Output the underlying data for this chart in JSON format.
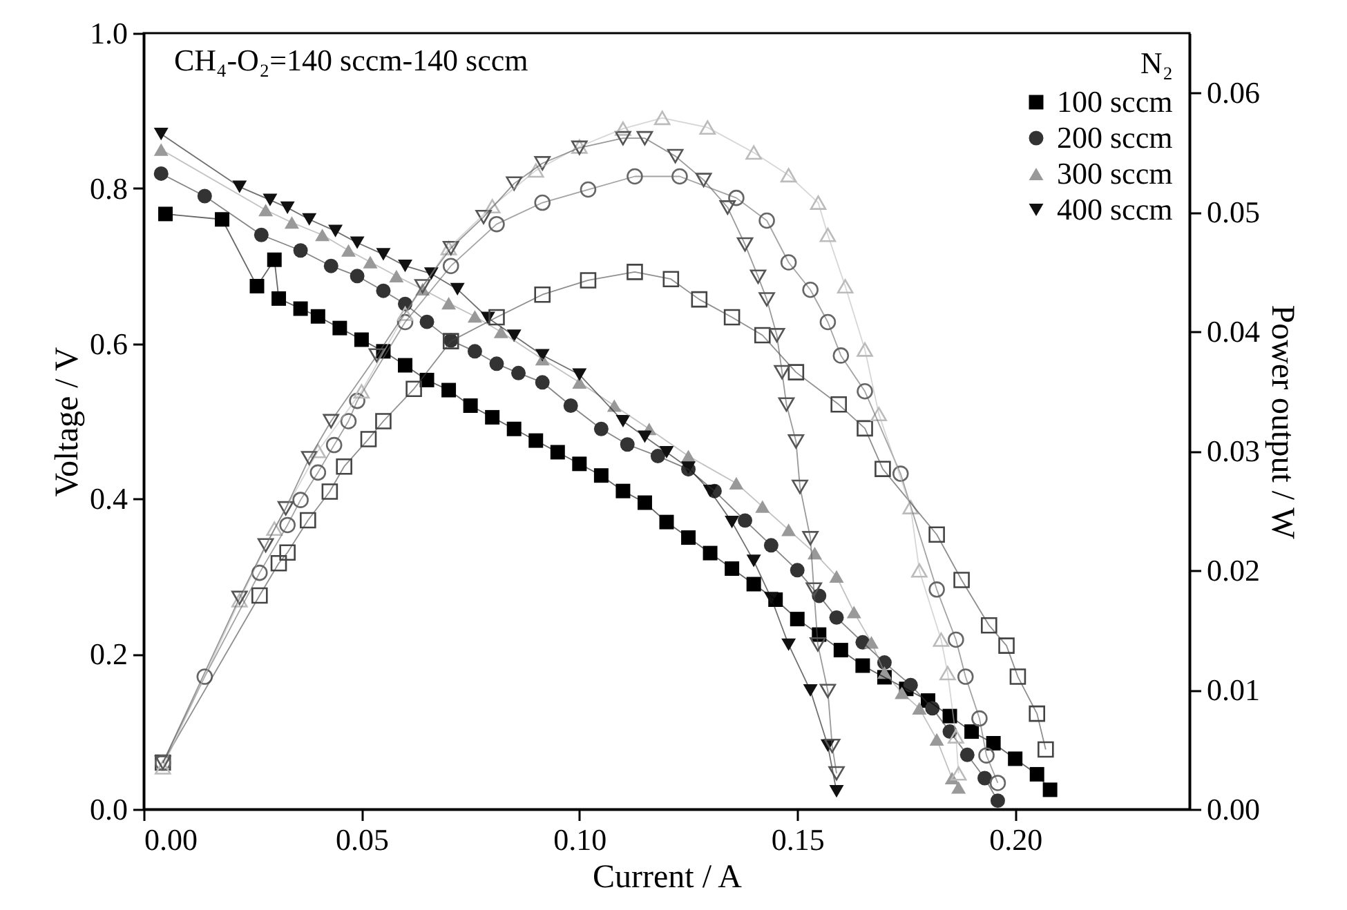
{
  "chart_data": {
    "type": "line",
    "xlabel": "Current / A",
    "ylabel": "Voltage / V",
    "y2label": "Power output / W",
    "legend_title": "N₂",
    "annotations": [
      "CH₄-O₂=140 sccm-140 sccm"
    ],
    "xlim": [
      0,
      0.24
    ],
    "xticks": [
      {
        "value": 0,
        "label": "0.00"
      },
      0.05,
      {
        "value": 0.1,
        "label": "0.10"
      },
      0.15,
      {
        "value": 0.2,
        "label": "0.20"
      }
    ],
    "ylim": [
      0,
      1
    ],
    "yticks": [
      {
        "value": 0,
        "label": "0.0"
      },
      0.2,
      0.4,
      0.6,
      0.8,
      {
        "value": 1,
        "label": "1.0"
      }
    ],
    "y2lim": [
      0,
      0.065
    ],
    "y2ticks": [
      {
        "value": 0,
        "label": "0.00"
      },
      0.01,
      0.02,
      0.03,
      0.04,
      0.05,
      0.06
    ],
    "legend": "top right",
    "series": [
      {
        "name": "100 sccm",
        "type": "line",
        "marker": "square",
        "color": "#000000",
        "x": [
          0.005,
          0.018,
          0.026,
          0.03,
          0.031,
          0.036,
          0.04,
          0.045,
          0.05,
          0.055,
          0.06,
          0.065,
          0.07,
          0.075,
          0.08,
          0.085,
          0.09,
          0.095,
          0.1,
          0.105,
          0.11,
          0.115,
          0.12,
          0.125,
          0.13,
          0.135,
          0.14,
          0.145,
          0.15,
          0.155,
          0.16,
          0.165,
          0.17,
          0.175,
          0.18,
          0.185,
          0.19,
          0.195,
          0.2,
          0.205,
          0.208
        ],
        "values": [
          0.767,
          0.76,
          0.674,
          0.708,
          0.658,
          0.645,
          0.635,
          0.62,
          0.605,
          0.59,
          0.572,
          0.553,
          0.54,
          0.52,
          0.505,
          0.49,
          0.475,
          0.46,
          0.445,
          0.43,
          0.41,
          0.395,
          0.37,
          0.35,
          0.33,
          0.31,
          0.29,
          0.27,
          0.245,
          0.225,
          0.205,
          0.185,
          0.17,
          0.155,
          0.14,
          0.12,
          0.1,
          0.085,
          0.065,
          0.045,
          0.025
        ]
      },
      {
        "name": "200 sccm",
        "type": "line",
        "marker": "circle",
        "color": "#333333",
        "x": [
          0.004,
          0.014,
          0.027,
          0.036,
          0.043,
          0.049,
          0.055,
          0.06,
          0.065,
          0.0705,
          0.076,
          0.081,
          0.086,
          0.0915,
          0.098,
          0.105,
          0.111,
          0.118,
          0.125,
          0.131,
          0.138,
          0.144,
          0.15,
          0.155,
          0.159,
          0.165,
          0.17,
          0.176,
          0.181,
          0.185,
          0.189,
          0.193,
          0.196
        ],
        "values": [
          0.819,
          0.79,
          0.74,
          0.72,
          0.7,
          0.687,
          0.668,
          0.651,
          0.628,
          0.604,
          0.59,
          0.574,
          0.562,
          0.55,
          0.52,
          0.49,
          0.47,
          0.455,
          0.438,
          0.41,
          0.372,
          0.34,
          0.308,
          0.275,
          0.247,
          0.215,
          0.189,
          0.16,
          0.13,
          0.1,
          0.07,
          0.04,
          0.011
        ]
      },
      {
        "name": "300 sccm",
        "type": "line",
        "marker": "triangle",
        "color": "#999999",
        "x": [
          0.004,
          0.028,
          0.034,
          0.041,
          0.047,
          0.052,
          0.058,
          0.064,
          0.07,
          0.076,
          0.082,
          0.0915,
          0.1,
          0.108,
          0.116,
          0.125,
          0.136,
          0.142,
          0.148,
          0.154,
          0.159,
          0.163,
          0.167,
          0.17,
          0.174,
          0.178,
          0.182,
          0.1855,
          0.187
        ],
        "values": [
          0.85,
          0.772,
          0.756,
          0.74,
          0.72,
          0.705,
          0.687,
          0.67,
          0.652,
          0.635,
          0.615,
          0.58,
          0.55,
          0.52,
          0.49,
          0.455,
          0.42,
          0.39,
          0.36,
          0.33,
          0.3,
          0.254,
          0.215,
          0.176,
          0.15,
          0.13,
          0.09,
          0.04,
          0.028
        ]
      },
      {
        "name": "400 sccm",
        "type": "line",
        "marker": "triangle-down",
        "color": "#111111",
        "x": [
          0.004,
          0.022,
          0.029,
          0.033,
          0.038,
          0.044,
          0.049,
          0.055,
          0.06,
          0.066,
          0.072,
          0.079,
          0.085,
          0.0915,
          0.1,
          0.11,
          0.115,
          0.12,
          0.125,
          0.13,
          0.135,
          0.14,
          0.144,
          0.148,
          0.153,
          0.157,
          0.159
        ],
        "values": [
          0.87,
          0.802,
          0.785,
          0.775,
          0.76,
          0.745,
          0.73,
          0.715,
          0.7,
          0.69,
          0.67,
          0.633,
          0.61,
          0.585,
          0.56,
          0.5,
          0.48,
          0.46,
          0.44,
          0.41,
          0.37,
          0.32,
          0.272,
          0.212,
          0.153,
          0.082,
          0.023
        ]
      },
      {
        "type": "line",
        "axis": "y2",
        "marker": "square",
        "color": "#444444",
        "x": [
          0.0044,
          0.0266,
          0.031,
          0.033,
          0.0377,
          0.0427,
          0.046,
          0.0516,
          0.055,
          0.062,
          0.0705,
          0.081,
          0.0915,
          0.102,
          0.1127,
          0.121,
          0.1275,
          0.135,
          0.142,
          0.1497,
          0.1595,
          0.1655,
          0.1696,
          0.182,
          0.1877,
          0.194,
          0.198,
          0.2006,
          0.205,
          0.207
        ],
        "values": [
          0.0039,
          0.0179,
          0.0206,
          0.0215,
          0.0242,
          0.0266,
          0.0287,
          0.031,
          0.0325,
          0.0352,
          0.0392,
          0.0412,
          0.0431,
          0.0443,
          0.045,
          0.0444,
          0.0427,
          0.0412,
          0.0397,
          0.0366,
          0.0339,
          0.0319,
          0.0285,
          0.023,
          0.0192,
          0.0154,
          0.0137,
          0.0111,
          0.008,
          0.005
        ]
      },
      {
        "type": "line",
        "axis": "y2",
        "marker": "circle",
        "color": "#666666",
        "x": [
          0.0044,
          0.014,
          0.0266,
          0.033,
          0.036,
          0.04,
          0.0437,
          0.047,
          0.049,
          0.06,
          0.0705,
          0.081,
          0.0915,
          0.102,
          0.1127,
          0.123,
          0.136,
          0.143,
          0.148,
          0.153,
          0.157,
          0.16,
          0.1655,
          0.1737,
          0.182,
          0.1864,
          0.1886,
          0.1918,
          0.1934,
          0.196
        ],
        "values": [
          0.0039,
          0.0111,
          0.0198,
          0.0238,
          0.0259,
          0.0282,
          0.0305,
          0.0325,
          0.0342,
          0.0408,
          0.0455,
          0.049,
          0.0508,
          0.0519,
          0.053,
          0.053,
          0.0512,
          0.0493,
          0.0458,
          0.0435,
          0.0408,
          0.038,
          0.035,
          0.0281,
          0.0184,
          0.0142,
          0.0111,
          0.0076,
          0.0045,
          0.0022
        ]
      },
      {
        "type": "line",
        "axis": "y2",
        "marker": "triangle",
        "color": "#bbbbbb",
        "x": [
          0.0044,
          0.022,
          0.03,
          0.04,
          0.05,
          0.06,
          0.07,
          0.08,
          0.09,
          0.1,
          0.11,
          0.119,
          0.1294,
          0.14,
          0.148,
          0.1548,
          0.157,
          0.161,
          0.1655,
          0.1687,
          0.176,
          0.178,
          0.183,
          0.1845,
          0.1864,
          0.187
        ],
        "values": [
          0.0035,
          0.0175,
          0.0235,
          0.03,
          0.035,
          0.0415,
          0.047,
          0.0505,
          0.0535,
          0.0555,
          0.057,
          0.0579,
          0.0571,
          0.055,
          0.0531,
          0.0508,
          0.0481,
          0.0438,
          0.0385,
          0.0331,
          0.0253,
          0.02,
          0.0142,
          0.0114,
          0.0061,
          0.003
        ]
      },
      {
        "type": "line",
        "axis": "y2",
        "marker": "triangle-down",
        "color": "#555555",
        "x": [
          0.0044,
          0.022,
          0.028,
          0.0326,
          0.038,
          0.043,
          0.0535,
          0.064,
          0.0705,
          0.078,
          0.085,
          0.0915,
          0.1,
          0.11,
          0.115,
          0.122,
          0.1285,
          0.134,
          0.138,
          0.141,
          0.143,
          0.1453,
          0.1465,
          0.1475,
          0.1497,
          0.1506,
          0.153,
          0.1538,
          0.1547,
          0.157,
          0.158,
          0.159
        ],
        "values": [
          0.0039,
          0.0177,
          0.0221,
          0.0252,
          0.0294,
          0.0325,
          0.038,
          0.0438,
          0.047,
          0.0496,
          0.0524,
          0.0541,
          0.0554,
          0.0562,
          0.0562,
          0.0547,
          0.0527,
          0.0504,
          0.0473,
          0.0446,
          0.0427,
          0.0397,
          0.0366,
          0.0339,
          0.0308,
          0.027,
          0.0227,
          0.0184,
          0.0138,
          0.0099,
          0.0053,
          0.003
        ]
      }
    ]
  }
}
